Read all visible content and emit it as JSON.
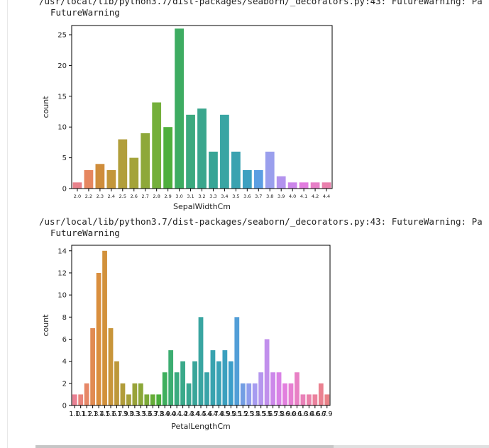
{
  "output": {
    "warnings": [
      {
        "line1": "/usr/local/lib/python3.7/dist-packages/seaborn/_decorators.py:43: FutureWarning: Pa",
        "line2": "FutureWarning"
      },
      {
        "line1": "/usr/local/lib/python3.7/dist-packages/seaborn/_decorators.py:43: FutureWarning: Pa",
        "line2": "FutureWarning"
      }
    ]
  },
  "chart_data": [
    {
      "type": "bar",
      "title": "",
      "xlabel": "SepalWidthCm",
      "ylabel": "count",
      "ylim": [
        0,
        26.5
      ],
      "yticks": [
        0,
        5,
        10,
        15,
        20,
        25
      ],
      "grid": false,
      "categories": [
        "2.0",
        "2.2",
        "2.3",
        "2.4",
        "2.5",
        "2.6",
        "2.7",
        "2.8",
        "2.9",
        "3.0",
        "3.1",
        "3.2",
        "3.3",
        "3.4",
        "3.5",
        "3.6",
        "3.7",
        "3.8",
        "3.9",
        "4.0",
        "4.1",
        "4.2",
        "4.4"
      ],
      "values": [
        1,
        3,
        4,
        3,
        8,
        5,
        9,
        14,
        10,
        26,
        12,
        13,
        6,
        12,
        6,
        3,
        3,
        6,
        2,
        1,
        1,
        1,
        1
      ],
      "colors": [
        "#e8818b",
        "#e6865f",
        "#cf8d3b",
        "#c3963a",
        "#b19e3b",
        "#a4a33a",
        "#8ea839",
        "#74af3b",
        "#4faf3c",
        "#3eac62",
        "#3ca97f",
        "#3aa68d",
        "#38a596",
        "#39a5a3",
        "#3aa2b0",
        "#3ca0c0",
        "#5b9ee2",
        "#9a9fed",
        "#b393ee",
        "#cc86ea",
        "#e27ddf",
        "#e77fc7",
        "#ea80ad"
      ]
    },
    {
      "type": "bar",
      "title": "",
      "xlabel": "PetalLengthCm",
      "ylabel": "count",
      "ylim": [
        0,
        14.5
      ],
      "yticks": [
        0,
        2,
        4,
        6,
        8,
        10,
        12,
        14
      ],
      "grid": false,
      "categories": [
        "1.0",
        "1.1",
        "1.2",
        "1.3",
        "1.4",
        "1.5",
        "1.6",
        "1.7",
        "1.9",
        "3.0",
        "3.3",
        "3.5",
        "3.6",
        "3.7",
        "3.8",
        "3.9",
        "4.0",
        "4.1",
        "4.2",
        "4.3",
        "4.4",
        "4.5",
        "4.6",
        "4.7",
        "4.8",
        "4.9",
        "5.0",
        "5.1",
        "5.2",
        "5.3",
        "5.4",
        "5.5",
        "5.6",
        "5.7",
        "5.8",
        "5.9",
        "6.0",
        "6.1",
        "6.3",
        "6.4",
        "6.6",
        "6.7",
        "6.9"
      ],
      "values": [
        1,
        1,
        2,
        7,
        12,
        14,
        7,
        4,
        2,
        1,
        2,
        2,
        1,
        1,
        1,
        3,
        5,
        3,
        4,
        2,
        4,
        8,
        3,
        5,
        4,
        5,
        4,
        8,
        2,
        2,
        2,
        3,
        6,
        3,
        3,
        2,
        2,
        3,
        1,
        1,
        1,
        2,
        1
      ],
      "colors": [
        "#ea8194",
        "#e9847b",
        "#e68767",
        "#e18b52",
        "#da8f3e",
        "#d2913b",
        "#c8953a",
        "#bd983a",
        "#b19c3a",
        "#a6a03a",
        "#99a339",
        "#8ba738",
        "#7ba938",
        "#66ac38",
        "#4aae3c",
        "#3eaf5e",
        "#3cad71",
        "#3bab80",
        "#3aa98a",
        "#3aa792",
        "#39a69a",
        "#39a5a1",
        "#38a4a8",
        "#38a3af",
        "#39a2b6",
        "#3ba0bf",
        "#3c9ec9",
        "#529ed7",
        "#739ee3",
        "#909ded",
        "#a69bf0",
        "#b596ee",
        "#c18fec",
        "#cc88ea",
        "#d982e6",
        "#e27fde",
        "#e67fd2",
        "#e880c5",
        "#e981b8",
        "#ea81aa",
        "#eb819d",
        "#ea8190",
        "#e98187"
      ]
    }
  ]
}
